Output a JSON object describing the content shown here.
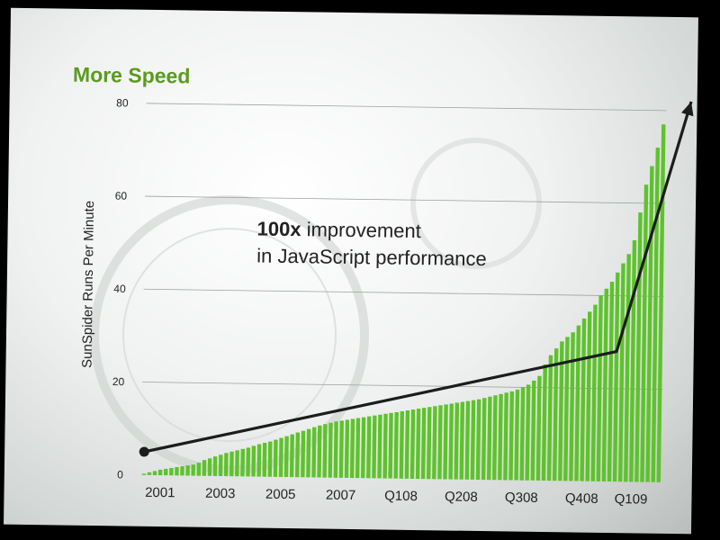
{
  "slide": {
    "title": "More Speed"
  },
  "colors": {
    "bar": "#5ec22c",
    "title": "#5a9c1f",
    "arrow": "#1c1c1c",
    "grid": "#9aa29d",
    "text": "#222222"
  },
  "annotation": {
    "bold": "100x",
    "line1_rest": " improvement",
    "line2": "in JavaScript performance"
  },
  "chart_data": {
    "type": "bar",
    "title": "More Speed",
    "ylabel": "SunSpider Runs Per Minute",
    "xlabel": "",
    "ylim": [
      0,
      80
    ],
    "yticks": [
      0,
      20,
      40,
      60,
      80
    ],
    "grid": true,
    "xtick_labels": [
      {
        "label": "2001",
        "index": 3
      },
      {
        "label": "2003",
        "index": 14
      },
      {
        "label": "2005",
        "index": 25
      },
      {
        "label": "2007",
        "index": 36
      },
      {
        "label": "Q108",
        "index": 47
      },
      {
        "label": "Q208",
        "index": 58
      },
      {
        "label": "Q308",
        "index": 69
      },
      {
        "label": "Q408",
        "index": 80
      },
      {
        "label": "Q109",
        "index": 89
      }
    ],
    "values": [
      0.3,
      0.6,
      0.9,
      1.2,
      1.4,
      1.6,
      1.8,
      2.0,
      2.2,
      2.4,
      2.8,
      3.4,
      3.8,
      4.2,
      4.6,
      5.0,
      5.3,
      5.6,
      5.9,
      6.2,
      6.6,
      7.0,
      7.3,
      7.6,
      8.0,
      8.4,
      8.8,
      9.2,
      9.6,
      10.0,
      10.4,
      10.8,
      11.2,
      11.5,
      11.8,
      12.1,
      12.3,
      12.5,
      12.7,
      12.9,
      13.1,
      13.3,
      13.5,
      13.7,
      13.9,
      14.1,
      14.3,
      14.5,
      14.7,
      14.9,
      15.1,
      15.3,
      15.5,
      15.7,
      15.9,
      16.1,
      16.3,
      16.5,
      16.7,
      16.9,
      17.1,
      17.3,
      17.6,
      17.9,
      18.2,
      18.5,
      18.8,
      19.1,
      19.5,
      20.0,
      20.6,
      21.5,
      22.5,
      25.0,
      27.0,
      28.5,
      30.0,
      31.0,
      32.0,
      33.5,
      35.0,
      36.5,
      38.0,
      40.0,
      41.5,
      43.0,
      45.0,
      47.0,
      49.0,
      52.0,
      58.0,
      64.0,
      68.0,
      72.0,
      77.0
    ],
    "trend_arrow": {
      "start": {
        "x_index": 0,
        "y": 5
      },
      "mid": {
        "x_index": 86,
        "y": 28
      },
      "end": {
        "x_index": 100,
        "y": 82
      }
    }
  }
}
